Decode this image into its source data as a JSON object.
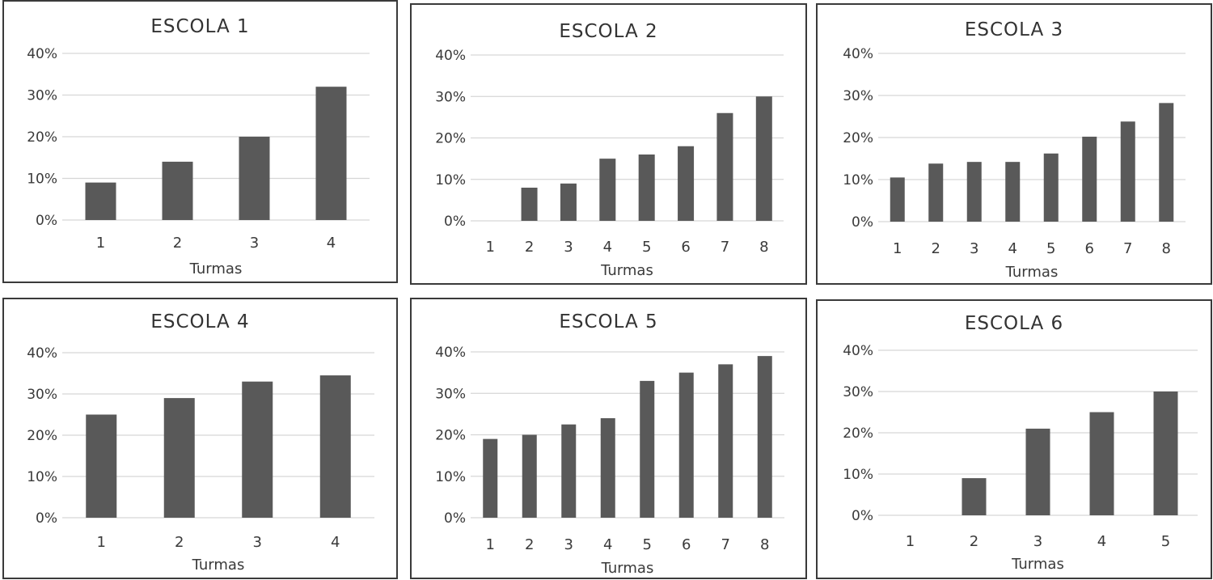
{
  "chart_data": [
    {
      "type": "bar",
      "title": "ESCOLA 1",
      "xlabel": "Turmas",
      "ylabel": "",
      "ylim": [
        0,
        40
      ],
      "yticks": [
        "0%",
        "10%",
        "20%",
        "30%",
        "40%"
      ],
      "categories": [
        "1",
        "2",
        "3",
        "4"
      ],
      "values": [
        9,
        14,
        20,
        32
      ],
      "grid": true,
      "bar_color": "#595959"
    },
    {
      "type": "bar",
      "title": "ESCOLA  2",
      "xlabel": "Turmas",
      "ylabel": "",
      "ylim": [
        0,
        40
      ],
      "yticks": [
        "0%",
        "10%",
        "20%",
        "30%",
        "40%"
      ],
      "categories": [
        "1",
        "2",
        "3",
        "4",
        "5",
        "6",
        "7",
        "8"
      ],
      "values": [
        0,
        8,
        9,
        15,
        16,
        18,
        26,
        30
      ],
      "grid": true,
      "bar_color": "#595959"
    },
    {
      "type": "bar",
      "title": "ESCOLA 3",
      "xlabel": "Turmas",
      "ylabel": "",
      "ylim": [
        0,
        40
      ],
      "yticks": [
        "0%",
        "10%",
        "20%",
        "30%",
        "40%"
      ],
      "categories": [
        "1",
        "2",
        "3",
        "4",
        "5",
        "6",
        "7",
        "8"
      ],
      "values": [
        10.5,
        13.8,
        14.2,
        14.2,
        16.2,
        20.2,
        23.8,
        28.2
      ],
      "grid": true,
      "bar_color": "#595959"
    },
    {
      "type": "bar",
      "title": "ESCOLA 4",
      "xlabel": "Turmas",
      "ylabel": "",
      "ylim": [
        0,
        40
      ],
      "yticks": [
        "0%",
        "10%",
        "20%",
        "30%",
        "40%"
      ],
      "categories": [
        "1",
        "2",
        "3",
        "4"
      ],
      "values": [
        25,
        29,
        33,
        34.5
      ],
      "grid": true,
      "bar_color": "#595959"
    },
    {
      "type": "bar",
      "title": "ESCOLA 5",
      "xlabel": "Turmas",
      "ylabel": "",
      "ylim": [
        0,
        40
      ],
      "yticks": [
        "0%",
        "10%",
        "20%",
        "30%",
        "40%"
      ],
      "categories": [
        "1",
        "2",
        "3",
        "4",
        "5",
        "6",
        "7",
        "8"
      ],
      "values": [
        19,
        20,
        22.5,
        24,
        33,
        35,
        37,
        39
      ],
      "grid": true,
      "bar_color": "#595959"
    },
    {
      "type": "bar",
      "title": "ESCOLA 6",
      "xlabel": "Turmas",
      "ylabel": "",
      "ylim": [
        0,
        40
      ],
      "yticks": [
        "0%",
        "10%",
        "20%",
        "30%",
        "40%"
      ],
      "categories": [
        "1",
        "2",
        "3",
        "4",
        "5"
      ],
      "values": [
        0,
        9,
        21,
        25,
        30
      ],
      "grid": true,
      "bar_color": "#595959"
    }
  ]
}
